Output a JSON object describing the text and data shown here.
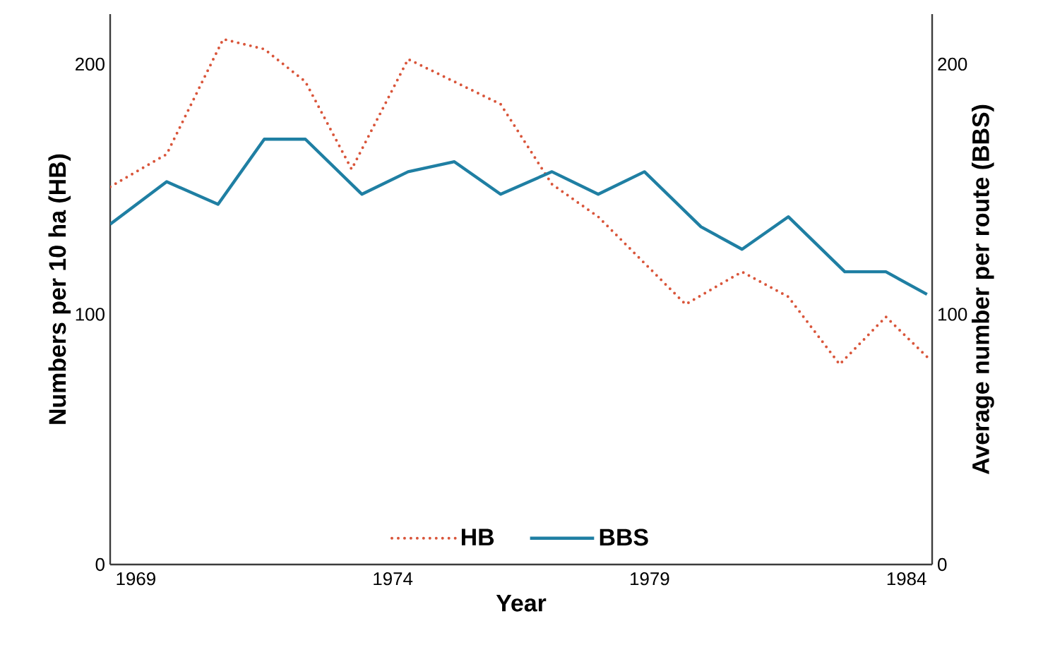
{
  "chart_data": {
    "type": "line",
    "xlabel": "Year",
    "ylabel": "Numbers per 10 ha (HB)",
    "y2label": "Average number per route (BBS)",
    "xlim": [
      1968.5,
      1984.5
    ],
    "xticks": [
      1969,
      1974,
      1979,
      1984
    ],
    "ylim": [
      0,
      220
    ],
    "yticks": [
      0,
      100,
      200
    ],
    "y2lim": [
      0,
      220
    ],
    "y2ticks": [
      0,
      100,
      200
    ],
    "legend": "bottom",
    "grid": false,
    "marker": "none",
    "series": [
      {
        "name": "HB",
        "color": "#d9553a",
        "line_style": "dotted",
        "x": [
          1968.5,
          1969.6,
          1970.7,
          1971.5,
          1972.3,
          1973.2,
          1974.3,
          1975.2,
          1976.1,
          1977.1,
          1978.0,
          1979.7,
          1980.8,
          1981.7,
          1982.7,
          1983.6,
          1984.4
        ],
        "values": [
          151,
          164,
          210,
          206,
          193,
          158,
          202,
          193,
          184,
          152,
          139,
          104,
          117,
          107,
          80,
          99,
          83
        ]
      },
      {
        "name": "BBS",
        "color": "#1f7fa3",
        "line_style": "solid",
        "axis": "y2",
        "x": [
          1968.5,
          1969.6,
          1970.6,
          1971.5,
          1972.3,
          1973.4,
          1974.3,
          1975.2,
          1976.1,
          1977.1,
          1978.0,
          1978.9,
          1980.0,
          1980.8,
          1981.7,
          1982.8,
          1983.6,
          1984.4
        ],
        "values": [
          136,
          153,
          144,
          170,
          170,
          148,
          157,
          161,
          148,
          157,
          148,
          157,
          135,
          126,
          139,
          117,
          117,
          108
        ]
      }
    ]
  }
}
